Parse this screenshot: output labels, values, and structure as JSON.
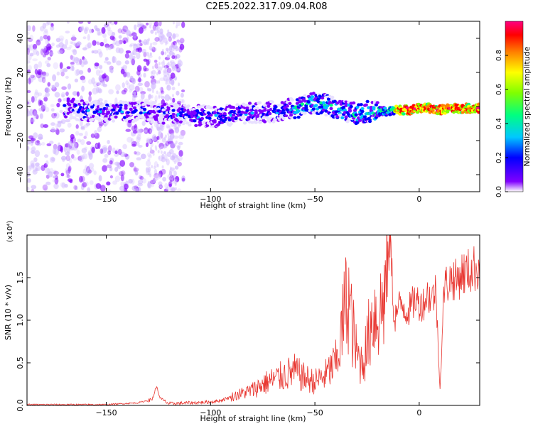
{
  "title": "C2E5.2022.317.09.04.R08",
  "colors": {
    "snr_line": "#e8352f",
    "axis": "#000000"
  },
  "chart_data": [
    {
      "type": "heatmap",
      "title": "C2E5.2022.317.09.04.R08",
      "xlabel": "Height of straight line (km)",
      "ylabel": "Frequency (Hz)",
      "xlim": [
        -188,
        29
      ],
      "ylim": [
        -50,
        50
      ],
      "x_ticks": [
        -150,
        -100,
        -50,
        0
      ],
      "y_ticks": [
        -40,
        -20,
        0,
        20,
        40
      ],
      "colorbar": {
        "label": "Normalized spectral amplitude",
        "range": [
          0.0,
          1.0
        ],
        "ticks": [
          "0.0",
          "0.2",
          "0.4",
          "0.6",
          "0.8"
        ],
        "colormap": [
          "#e8e0ff",
          "#8000ff",
          "#0000ff",
          "#00c0ff",
          "#00ff80",
          "#80ff00",
          "#ffff00",
          "#ff8000",
          "#ff0000",
          "#ff0080"
        ]
      },
      "ridge": {
        "x": [
          -165,
          -150,
          -135,
          -120,
          -110,
          -100,
          -90,
          -80,
          -70,
          -60,
          -50,
          -45,
          -40,
          -35,
          -30,
          -25,
          -20,
          -15,
          -10,
          -5,
          0,
          5,
          10,
          15,
          20,
          25,
          29
        ],
        "frequency": [
          -2,
          -3,
          -3,
          -4,
          -5,
          -6,
          -5,
          -4,
          -3,
          -1,
          2,
          1,
          -1,
          -3,
          -4,
          -3,
          -3,
          -3,
          -2,
          -2,
          -1,
          -1,
          -2,
          -1,
          -1,
          -1,
          -1
        ]
      }
    },
    {
      "type": "line",
      "xlabel": "Height of straight line (km)",
      "ylabel": "SNR (10 * v/v)",
      "y_multiplier": "(x10⁴)",
      "xlim": [
        -188,
        29
      ],
      "ylim": [
        0.0,
        2.0
      ],
      "x_ticks": [
        -150,
        -100,
        -50,
        0
      ],
      "y_ticks": [
        "0.0",
        "0.5",
        "1.0",
        "1.5"
      ],
      "series": [
        {
          "x": [
            -188,
            -170,
            -150,
            -135,
            -128,
            -126,
            -124,
            -120,
            -110,
            -100,
            -95,
            -90,
            -85,
            -80,
            -75,
            -70,
            -65,
            -60,
            -55,
            -50,
            -45,
            -40,
            -38,
            -36,
            -34,
            -32,
            -30,
            -28,
            -26,
            -24,
            -22,
            -20,
            -18,
            -16,
            -14,
            -12,
            -10,
            -8,
            -6,
            -4,
            -2,
            0,
            2,
            4,
            6,
            8,
            10,
            12,
            14,
            16,
            18,
            20,
            22,
            24,
            26,
            29
          ],
          "y": [
            0.01,
            0.01,
            0.01,
            0.03,
            0.07,
            0.22,
            0.08,
            0.02,
            0.03,
            0.04,
            0.06,
            0.1,
            0.14,
            0.18,
            0.25,
            0.3,
            0.35,
            0.4,
            0.32,
            0.28,
            0.35,
            0.5,
            0.7,
            1.1,
            1.3,
            0.9,
            0.6,
            0.5,
            0.6,
            0.85,
            1.1,
            1.05,
            1.15,
            1.4,
            2.0,
            1.0,
            1.15,
            1.2,
            1.1,
            1.15,
            1.25,
            1.2,
            1.2,
            1.3,
            1.25,
            1.35,
            0.2,
            1.4,
            1.45,
            1.5,
            1.45,
            1.55,
            1.55,
            1.58,
            1.6,
            1.63
          ]
        }
      ]
    }
  ]
}
